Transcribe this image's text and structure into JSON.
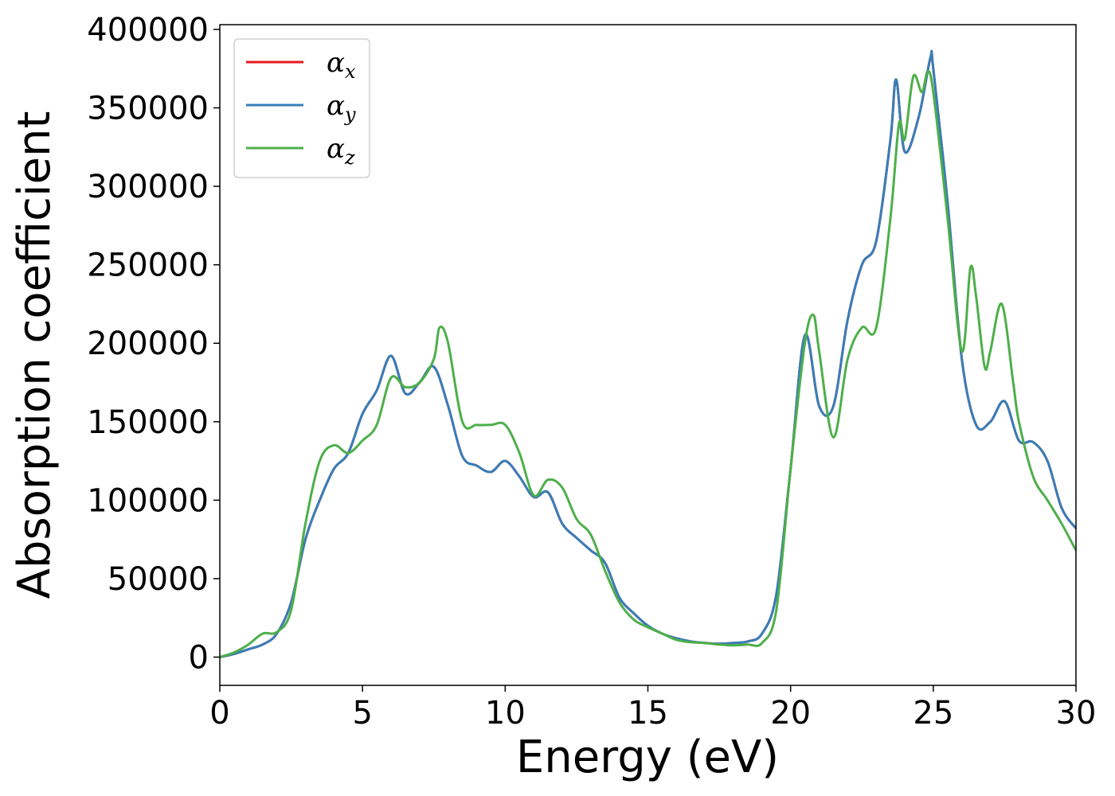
{
  "chart_data": {
    "type": "line",
    "xlabel": "Energy (eV)",
    "ylabel": "Absorption coefficient",
    "xlim": [
      0,
      30
    ],
    "ylim": [
      -18000,
      403000
    ],
    "xticks": [
      0,
      5,
      10,
      15,
      20,
      25,
      30
    ],
    "yticks": [
      0,
      50000,
      100000,
      150000,
      200000,
      250000,
      300000,
      350000,
      400000
    ],
    "grid": false,
    "legend_position": "upper-left",
    "series": [
      {
        "name": "αx",
        "name_base": "α",
        "name_sub": "x",
        "color": "#e41a1c",
        "x": [
          0,
          0.5,
          1,
          1.5,
          2,
          2.5,
          3,
          3.5,
          4,
          4.5,
          5,
          5.5,
          6,
          6.5,
          7,
          7.5,
          8,
          8.5,
          9,
          9.5,
          10,
          10.5,
          11,
          11.5,
          12,
          12.5,
          13,
          13.5,
          14,
          14.5,
          15,
          15.5,
          16,
          16.5,
          17,
          17.5,
          18,
          18.5,
          19,
          19.5,
          20,
          20.5,
          21,
          21.5,
          22,
          22.5,
          23,
          23.5,
          23.7,
          24,
          24.5,
          24.9,
          25,
          25.5,
          26,
          26.5,
          27,
          27.5,
          28,
          28.5,
          29,
          29.5,
          30
        ],
        "values": [
          0,
          2000,
          5000,
          8000,
          15000,
          35000,
          75000,
          100000,
          120000,
          130000,
          155000,
          170000,
          192000,
          168000,
          175000,
          185000,
          160000,
          128000,
          122000,
          118000,
          125000,
          115000,
          102000,
          105000,
          85000,
          76000,
          68000,
          60000,
          38000,
          28000,
          20000,
          15000,
          12000,
          10000,
          9000,
          8500,
          9000,
          10000,
          15000,
          40000,
          120000,
          205000,
          160000,
          160000,
          215000,
          250000,
          265000,
          330000,
          368000,
          322000,
          345000,
          382000,
          375000,
          290000,
          190000,
          148000,
          150000,
          163000,
          138000,
          137000,
          125000,
          95000,
          82000
        ]
      },
      {
        "name": "αy",
        "name_base": "α",
        "name_sub": "y",
        "color": "#377eb8",
        "x": [
          0,
          0.5,
          1,
          1.5,
          2,
          2.5,
          3,
          3.5,
          4,
          4.5,
          5,
          5.5,
          6,
          6.5,
          7,
          7.5,
          8,
          8.5,
          9,
          9.5,
          10,
          10.5,
          11,
          11.5,
          12,
          12.5,
          13,
          13.5,
          14,
          14.5,
          15,
          15.5,
          16,
          16.5,
          17,
          17.5,
          18,
          18.5,
          19,
          19.5,
          20,
          20.5,
          21,
          21.5,
          22,
          22.5,
          23,
          23.5,
          23.7,
          24,
          24.5,
          24.9,
          25,
          25.5,
          26,
          26.5,
          27,
          27.5,
          28,
          28.5,
          29,
          29.5,
          30
        ],
        "values": [
          0,
          2000,
          5000,
          8000,
          15000,
          35000,
          75000,
          100000,
          120000,
          130000,
          155000,
          170000,
          192000,
          168000,
          175000,
          185000,
          160000,
          128000,
          122000,
          118000,
          125000,
          115000,
          102000,
          105000,
          85000,
          76000,
          68000,
          60000,
          38000,
          28000,
          20000,
          15000,
          12000,
          10000,
          9000,
          8500,
          9000,
          10000,
          15000,
          40000,
          120000,
          205000,
          160000,
          160000,
          215000,
          250000,
          265000,
          330000,
          368000,
          322000,
          345000,
          382000,
          375000,
          290000,
          190000,
          148000,
          150000,
          163000,
          138000,
          137000,
          125000,
          95000,
          82000
        ]
      },
      {
        "name": "αz",
        "name_base": "α",
        "name_sub": "z",
        "color": "#4daf4a",
        "x": [
          0,
          0.5,
          1,
          1.5,
          2,
          2.5,
          3,
          3.5,
          4,
          4.5,
          5,
          5.5,
          6,
          6.5,
          7,
          7.5,
          7.7,
          8,
          8.5,
          9,
          9.5,
          10,
          10.5,
          11,
          11.5,
          12,
          12.5,
          13,
          13.5,
          14,
          14.5,
          15,
          15.5,
          16,
          16.5,
          17,
          17.5,
          18,
          18.5,
          19,
          19.5,
          20,
          20.5,
          20.8,
          21,
          21.5,
          22,
          22.5,
          23,
          23.5,
          23.8,
          24,
          24.3,
          24.6,
          24.8,
          25,
          25.5,
          26,
          26.3,
          26.5,
          26.8,
          27,
          27.4,
          27.8,
          28,
          28.5,
          29,
          29.5,
          30
        ],
        "values": [
          0,
          3000,
          8000,
          15000,
          16000,
          30000,
          85000,
          125000,
          135000,
          130000,
          138000,
          148000,
          178000,
          172000,
          175000,
          190000,
          210000,
          200000,
          150000,
          148000,
          148000,
          148000,
          130000,
          103000,
          113000,
          108000,
          88000,
          78000,
          55000,
          35000,
          24000,
          19000,
          15000,
          11000,
          9500,
          9000,
          8000,
          7500,
          8000,
          9000,
          30000,
          120000,
          200000,
          218000,
          195000,
          140000,
          190000,
          210000,
          210000,
          280000,
          340000,
          330000,
          370000,
          360000,
          373000,
          360000,
          280000,
          195000,
          248000,
          230000,
          185000,
          195000,
          225000,
          175000,
          150000,
          115000,
          100000,
          85000,
          68000
        ]
      }
    ]
  }
}
